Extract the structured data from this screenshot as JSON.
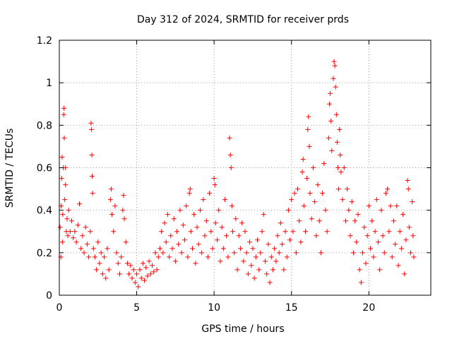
{
  "chart_data": {
    "type": "scatter",
    "title": "Day 312 of 2024, SRMTID for receiver prds",
    "xlabel": "GPS time / hours",
    "ylabel": "SRMTID / TECUs",
    "xlim": [
      0,
      24
    ],
    "ylim": [
      0,
      1.2
    ],
    "xticks": [
      0,
      5,
      10,
      15,
      20
    ],
    "xtick_labels": [
      "0",
      "5",
      "10",
      "15",
      "20"
    ],
    "yticks": [
      0,
      0.2,
      0.4,
      0.6,
      0.8,
      1,
      1.2
    ],
    "ytick_labels": [
      "0",
      "0.2",
      "0.4",
      "0.6",
      "0.8",
      "1",
      "1.2"
    ],
    "grid": true,
    "marker": "plus",
    "series_color": "#ff0000",
    "series": [
      {
        "name": "SRMTID",
        "points": [
          [
            0.05,
            0.32
          ],
          [
            0.1,
            0.18
          ],
          [
            0.12,
            0.42
          ],
          [
            0.15,
            0.55
          ],
          [
            0.18,
            0.65
          ],
          [
            0.2,
            0.25
          ],
          [
            0.22,
            0.38
          ],
          [
            0.25,
            0.6
          ],
          [
            0.28,
            0.85
          ],
          [
            0.3,
            0.88
          ],
          [
            0.32,
            0.74
          ],
          [
            0.35,
            0.45
          ],
          [
            0.38,
            0.6
          ],
          [
            0.4,
            0.52
          ],
          [
            0.45,
            0.3
          ],
          [
            0.5,
            0.36
          ],
          [
            0.55,
            0.28
          ],
          [
            0.6,
            0.4
          ],
          [
            0.7,
            0.3
          ],
          [
            0.8,
            0.35
          ],
          [
            0.9,
            0.27
          ],
          [
            1.0,
            0.3
          ],
          [
            1.1,
            0.25
          ],
          [
            1.2,
            0.33
          ],
          [
            1.3,
            0.43
          ],
          [
            1.4,
            0.22
          ],
          [
            1.5,
            0.28
          ],
          [
            1.6,
            0.2
          ],
          [
            1.7,
            0.32
          ],
          [
            1.8,
            0.24
          ],
          [
            1.9,
            0.18
          ],
          [
            2.0,
            0.3
          ],
          [
            2.05,
            0.81
          ],
          [
            2.08,
            0.78
          ],
          [
            2.1,
            0.66
          ],
          [
            2.12,
            0.56
          ],
          [
            2.15,
            0.48
          ],
          [
            2.2,
            0.22
          ],
          [
            2.3,
            0.18
          ],
          [
            2.4,
            0.12
          ],
          [
            2.5,
            0.25
          ],
          [
            2.6,
            0.15
          ],
          [
            2.7,
            0.2
          ],
          [
            2.8,
            0.1
          ],
          [
            2.9,
            0.18
          ],
          [
            3.0,
            0.08
          ],
          [
            3.1,
            0.22
          ],
          [
            3.2,
            0.12
          ],
          [
            3.3,
            0.45
          ],
          [
            3.35,
            0.5
          ],
          [
            3.4,
            0.38
          ],
          [
            3.5,
            0.3
          ],
          [
            3.6,
            0.42
          ],
          [
            3.7,
            0.2
          ],
          [
            3.8,
            0.15
          ],
          [
            3.9,
            0.1
          ],
          [
            4.0,
            0.18
          ],
          [
            4.1,
            0.4
          ],
          [
            4.15,
            0.47
          ],
          [
            4.2,
            0.36
          ],
          [
            4.3,
            0.25
          ],
          [
            4.4,
            0.15
          ],
          [
            4.5,
            0.1
          ],
          [
            4.6,
            0.14
          ],
          [
            4.7,
            0.08
          ],
          [
            4.8,
            0.12
          ],
          [
            4.9,
            0.06
          ],
          [
            5.0,
            0.1
          ],
          [
            5.1,
            0.04
          ],
          [
            5.2,
            0.12
          ],
          [
            5.3,
            0.08
          ],
          [
            5.4,
            0.15
          ],
          [
            5.5,
            0.07
          ],
          [
            5.6,
            0.13
          ],
          [
            5.7,
            0.09
          ],
          [
            5.8,
            0.16
          ],
          [
            5.9,
            0.1
          ],
          [
            6.0,
            0.14
          ],
          [
            6.1,
            0.11
          ],
          [
            6.2,
            0.2
          ],
          [
            6.3,
            0.12
          ],
          [
            6.4,
            0.18
          ],
          [
            6.5,
            0.22
          ],
          [
            6.6,
            0.3
          ],
          [
            6.7,
            0.2
          ],
          [
            6.8,
            0.34
          ],
          [
            6.9,
            0.25
          ],
          [
            7.0,
            0.38
          ],
          [
            7.1,
            0.18
          ],
          [
            7.2,
            0.28
          ],
          [
            7.3,
            0.22
          ],
          [
            7.4,
            0.36
          ],
          [
            7.5,
            0.16
          ],
          [
            7.6,
            0.3
          ],
          [
            7.7,
            0.24
          ],
          [
            7.8,
            0.4
          ],
          [
            7.9,
            0.2
          ],
          [
            8.0,
            0.33
          ],
          [
            8.1,
            0.26
          ],
          [
            8.2,
            0.42
          ],
          [
            8.3,
            0.18
          ],
          [
            8.4,
            0.48
          ],
          [
            8.45,
            0.5
          ],
          [
            8.5,
            0.3
          ],
          [
            8.6,
            0.22
          ],
          [
            8.7,
            0.38
          ],
          [
            8.8,
            0.15
          ],
          [
            8.9,
            0.32
          ],
          [
            9.0,
            0.24
          ],
          [
            9.1,
            0.4
          ],
          [
            9.2,
            0.2
          ],
          [
            9.3,
            0.45
          ],
          [
            9.4,
            0.28
          ],
          [
            9.5,
            0.35
          ],
          [
            9.6,
            0.18
          ],
          [
            9.7,
            0.48
          ],
          [
            9.8,
            0.3
          ],
          [
            9.9,
            0.22
          ],
          [
            10.0,
            0.55
          ],
          [
            10.05,
            0.52
          ],
          [
            10.1,
            0.34
          ],
          [
            10.2,
            0.26
          ],
          [
            10.3,
            0.4
          ],
          [
            10.4,
            0.16
          ],
          [
            10.5,
            0.32
          ],
          [
            10.6,
            0.22
          ],
          [
            10.7,
            0.45
          ],
          [
            10.8,
            0.28
          ],
          [
            10.9,
            0.18
          ],
          [
            11.0,
            0.74
          ],
          [
            11.05,
            0.66
          ],
          [
            11.1,
            0.6
          ],
          [
            11.15,
            0.42
          ],
          [
            11.2,
            0.3
          ],
          [
            11.3,
            0.2
          ],
          [
            11.4,
            0.36
          ],
          [
            11.5,
            0.12
          ],
          [
            11.6,
            0.28
          ],
          [
            11.7,
            0.22
          ],
          [
            11.8,
            0.34
          ],
          [
            11.9,
            0.16
          ],
          [
            12.0,
            0.3
          ],
          [
            12.1,
            0.2
          ],
          [
            12.2,
            0.1
          ],
          [
            12.3,
            0.25
          ],
          [
            12.4,
            0.14
          ],
          [
            12.5,
            0.22
          ],
          [
            12.6,
            0.08
          ],
          [
            12.7,
            0.18
          ],
          [
            12.8,
            0.26
          ],
          [
            12.9,
            0.12
          ],
          [
            13.0,
            0.2
          ],
          [
            13.1,
            0.3
          ],
          [
            13.2,
            0.38
          ],
          [
            13.3,
            0.16
          ],
          [
            13.4,
            0.1
          ],
          [
            13.5,
            0.24
          ],
          [
            13.6,
            0.06
          ],
          [
            13.7,
            0.18
          ],
          [
            13.8,
            0.12
          ],
          [
            13.9,
            0.22
          ],
          [
            14.0,
            0.16
          ],
          [
            14.1,
            0.28
          ],
          [
            14.2,
            0.2
          ],
          [
            14.3,
            0.34
          ],
          [
            14.4,
            0.24
          ],
          [
            14.5,
            0.12
          ],
          [
            14.6,
            0.3
          ],
          [
            14.7,
            0.18
          ],
          [
            14.8,
            0.4
          ],
          [
            14.9,
            0.26
          ],
          [
            15.0,
            0.45
          ],
          [
            15.1,
            0.3
          ],
          [
            15.2,
            0.48
          ],
          [
            15.3,
            0.2
          ],
          [
            15.4,
            0.5
          ],
          [
            15.5,
            0.35
          ],
          [
            15.6,
            0.25
          ],
          [
            15.7,
            0.58
          ],
          [
            15.75,
            0.64
          ],
          [
            15.8,
            0.42
          ],
          [
            15.9,
            0.3
          ],
          [
            16.0,
            0.55
          ],
          [
            16.05,
            0.78
          ],
          [
            16.1,
            0.84
          ],
          [
            16.15,
            0.7
          ],
          [
            16.2,
            0.48
          ],
          [
            16.3,
            0.36
          ],
          [
            16.4,
            0.6
          ],
          [
            16.5,
            0.44
          ],
          [
            16.6,
            0.28
          ],
          [
            16.7,
            0.52
          ],
          [
            16.8,
            0.35
          ],
          [
            16.9,
            0.2
          ],
          [
            17.0,
            0.48
          ],
          [
            17.1,
            0.62
          ],
          [
            17.2,
            0.4
          ],
          [
            17.3,
            0.3
          ],
          [
            17.4,
            0.74
          ],
          [
            17.45,
            0.9
          ],
          [
            17.5,
            0.95
          ],
          [
            17.55,
            0.82
          ],
          [
            17.6,
            0.68
          ],
          [
            17.7,
            1.02
          ],
          [
            17.75,
            1.1
          ],
          [
            17.8,
            1.08
          ],
          [
            17.85,
            0.98
          ],
          [
            17.9,
            0.85
          ],
          [
            17.95,
            0.72
          ],
          [
            18.0,
            0.6
          ],
          [
            18.05,
            0.5
          ],
          [
            18.1,
            0.78
          ],
          [
            18.15,
            0.66
          ],
          [
            18.2,
            0.58
          ],
          [
            18.3,
            0.45
          ],
          [
            18.4,
            0.6
          ],
          [
            18.5,
            0.35
          ],
          [
            18.6,
            0.5
          ],
          [
            18.7,
            0.4
          ],
          [
            18.8,
            0.28
          ],
          [
            18.9,
            0.44
          ],
          [
            19.0,
            0.2
          ],
          [
            19.1,
            0.35
          ],
          [
            19.2,
            0.25
          ],
          [
            19.3,
            0.38
          ],
          [
            19.4,
            0.12
          ],
          [
            19.5,
            0.06
          ],
          [
            19.6,
            0.2
          ],
          [
            19.7,
            0.32
          ],
          [
            19.8,
            0.15
          ],
          [
            19.9,
            0.28
          ],
          [
            20.0,
            0.42
          ],
          [
            20.1,
            0.22
          ],
          [
            20.2,
            0.35
          ],
          [
            20.3,
            0.18
          ],
          [
            20.4,
            0.3
          ],
          [
            20.5,
            0.45
          ],
          [
            20.6,
            0.25
          ],
          [
            20.7,
            0.12
          ],
          [
            20.8,
            0.4
          ],
          [
            20.9,
            0.28
          ],
          [
            21.0,
            0.2
          ],
          [
            21.1,
            0.48
          ],
          [
            21.2,
            0.5
          ],
          [
            21.3,
            0.3
          ],
          [
            21.4,
            0.42
          ],
          [
            21.5,
            0.18
          ],
          [
            21.6,
            0.35
          ],
          [
            21.7,
            0.24
          ],
          [
            21.8,
            0.42
          ],
          [
            21.9,
            0.14
          ],
          [
            22.0,
            0.3
          ],
          [
            22.1,
            0.22
          ],
          [
            22.2,
            0.38
          ],
          [
            22.3,
            0.1
          ],
          [
            22.4,
            0.26
          ],
          [
            22.5,
            0.54
          ],
          [
            22.55,
            0.5
          ],
          [
            22.6,
            0.32
          ],
          [
            22.7,
            0.2
          ],
          [
            22.8,
            0.44
          ],
          [
            22.85,
            0.28
          ],
          [
            22.9,
            0.18
          ]
        ]
      }
    ]
  }
}
